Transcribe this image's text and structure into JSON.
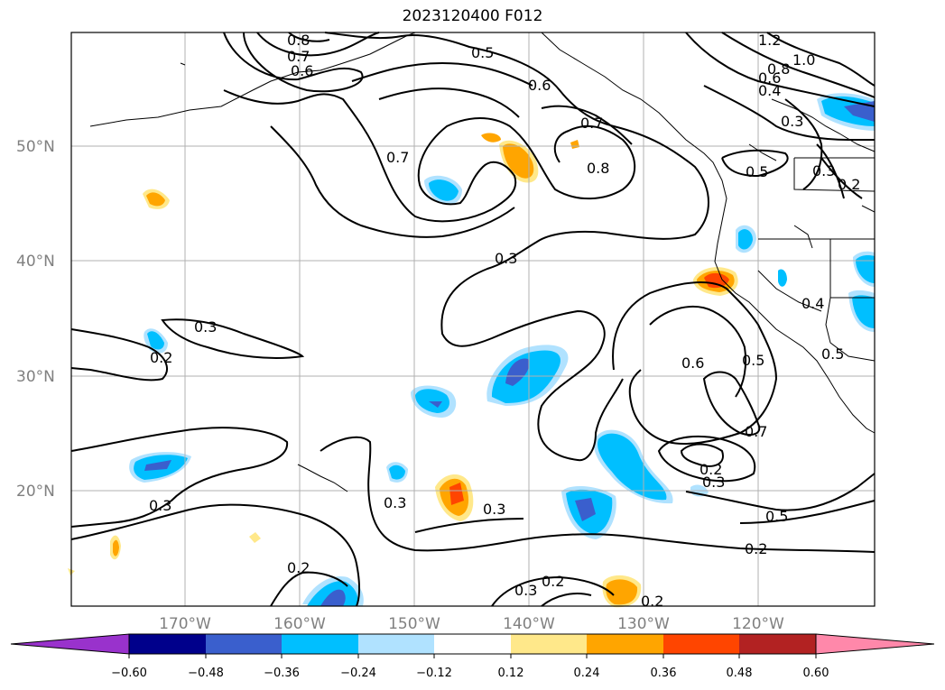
{
  "title": "2023120400 F012",
  "map": {
    "lat_labels": [
      {
        "label": "50°N",
        "lat": 50
      },
      {
        "label": "40°N",
        "lat": 40
      },
      {
        "label": "30°N",
        "lat": 30
      },
      {
        "label": "20°N",
        "lat": 20
      }
    ],
    "lon_labels": [
      {
        "label": "170°W",
        "lon": -170
      },
      {
        "label": "160°W",
        "lon": -160
      },
      {
        "label": "150°W",
        "lon": -150
      },
      {
        "label": "140°W",
        "lon": -140
      },
      {
        "label": "130°W",
        "lon": -130
      },
      {
        "label": "120°W",
        "lon": -120
      }
    ],
    "contour_labels": [
      "0.8",
      "0.7",
      "0.6",
      "0.5",
      "0.6",
      "0.7",
      "0.8",
      "0.7",
      "0.3",
      "0.3",
      "0.2",
      "0.3",
      "0.3",
      "0.3",
      "0.2",
      "0.3",
      "0.2",
      "0.2",
      "1.2",
      "1.0",
      "0.8",
      "0.6",
      "0.4",
      "0.3",
      "0.5",
      "0.3",
      "0.2",
      "0.4",
      "0.6",
      "0.5",
      "0.7",
      "0.2",
      "0.3",
      "0.5",
      "0.2",
      "0.5"
    ]
  },
  "colorbar": {
    "ticks": [
      "−0.60",
      "−0.48",
      "−0.36",
      "−0.24",
      "−0.12",
      "0.12",
      "0.24",
      "0.36",
      "0.48",
      "0.60"
    ],
    "colors": [
      "#9932cc",
      "#00008b",
      "#3a5fcd",
      "#00bfff",
      "#b0e2ff",
      "#ffffff",
      "#ffe88a",
      "#ffa500",
      "#ff4500",
      "#b22222",
      "#ff88aa"
    ]
  }
}
